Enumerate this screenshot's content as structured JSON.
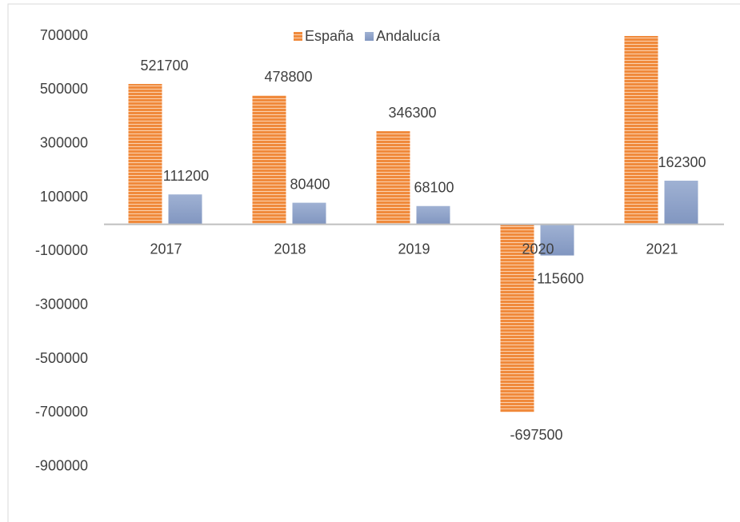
{
  "chart_data": {
    "type": "bar",
    "categories": [
      "2017",
      "2018",
      "2019",
      "2020",
      "2021"
    ],
    "series": [
      {
        "name": "España",
        "color": "#f08a3c",
        "values": [
          521700,
          478800,
          346300,
          -697500,
          700000
        ],
        "value_labels": [
          "521700",
          "478800",
          "346300",
          "-697500",
          null
        ]
      },
      {
        "name": "Andalucía",
        "color": "#8fa3c8",
        "values": [
          111200,
          80400,
          68100,
          -115600,
          162300
        ]
      }
    ],
    "ylim": [
      -1100000,
      700000
    ],
    "yticks": [
      700000,
      500000,
      300000,
      100000,
      -100000,
      -300000,
      -500000,
      -700000,
      -900000
    ],
    "legend": "top"
  }
}
